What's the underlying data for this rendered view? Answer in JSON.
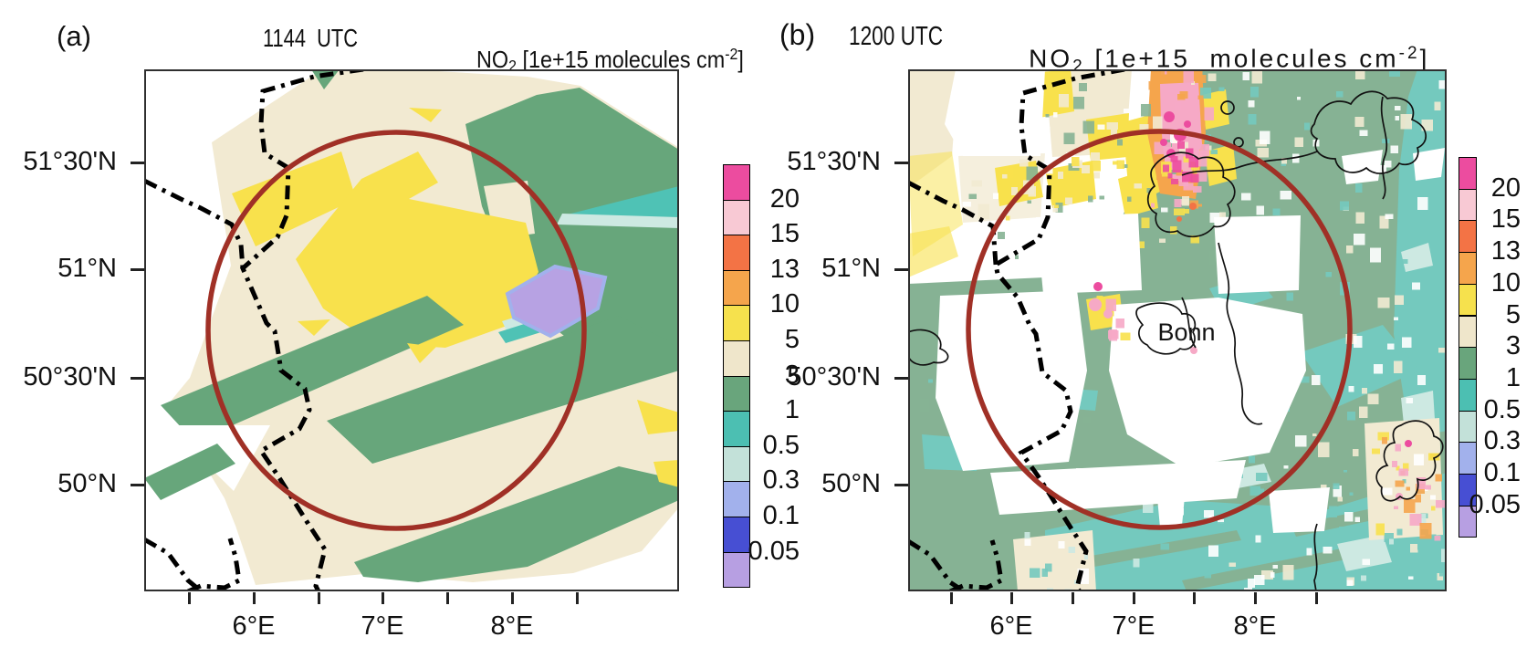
{
  "figure": {
    "background": "#ffffff"
  },
  "panels": [
    {
      "id": "a",
      "index_label": "(a)",
      "time_label": "1144  UTC",
      "title": {
        "species": "NO",
        "subscript": "2",
        "middle": " [1e+15 molecules cm",
        "superscript": "-2",
        "closing": "]"
      }
    },
    {
      "id": "b",
      "index_label": "(b)",
      "time_label": "1200 UTC",
      "title": {
        "species": "NO",
        "subscript": "2",
        "middle": " [1e+15  molecules cm",
        "superscript": "-2",
        "closing": "]"
      },
      "city_label": "Bonn"
    }
  ],
  "axes": {
    "lat_labels": [
      "51°30'N",
      "51°N",
      "50°30'N",
      "50°N"
    ],
    "lon_labels": [
      "6°E",
      "7°E",
      "8°E"
    ]
  },
  "colorbar": {
    "tick_labels": [
      "20",
      "15",
      "13",
      "10",
      "5",
      "3",
      "1",
      "0.5",
      "0.3",
      "0.1",
      "0.05"
    ],
    "segment_colors_top_to_bottom": [
      "#ec4c9f",
      "#f8c9d4",
      "#f37345",
      "#f5a54c",
      "#f6e14d",
      "#efe6cb",
      "#69a57c",
      "#4cbfb2",
      "#c3e1d9",
      "#a2b1ec",
      "#474fd3",
      "#b79fe2"
    ]
  },
  "palette": {
    "magenta": "#ec4c9f",
    "pink": "#f6a9c6",
    "orangered": "#f37345",
    "orange": "#f5a54c",
    "yellow": "#f8e14c",
    "cream": "#f2ead2",
    "green_a": "#67a67b",
    "green_b": "#86b294",
    "teal_a": "#4fc2b5",
    "teal_b": "#74c9be",
    "palecyan": "#cde9e2",
    "periwinkle": "#a2b1ec",
    "blue": "#474fd3",
    "lavender": "#b7a2e3",
    "circle": "#a03026",
    "border_line": "#000000"
  },
  "chart_data": [
    {
      "type": "heatmap",
      "panel": "(a)",
      "title": "1144  UTC",
      "variable": "NO2 [1e+15 molecules cm-2]",
      "x_tick_labels": [
        "6°E",
        "7°E",
        "8°E"
      ],
      "x_minor_tick_degrees": [
        5.5,
        6,
        6.5,
        7,
        7.5,
        8,
        8.5
      ],
      "y_tick_labels": [
        "51°30'N",
        "51°N",
        "50°30'N",
        "50°N"
      ],
      "colorbar_boundaries_low_to_high": [
        0.05,
        0.1,
        0.3,
        0.5,
        1,
        3,
        5,
        10,
        13,
        15,
        20
      ],
      "colorbar_colors_low_to_high": [
        "#b79fe2",
        "#474fd3",
        "#a2b1ec",
        "#c3e1d9",
        "#4cbfb2",
        "#69a57c",
        "#efe6cb",
        "#f6e14d",
        "#f5a54c",
        "#f37345",
        "#f8c9d4",
        "#ec4c9f"
      ],
      "legend_position": "right of panel",
      "features": [
        "smooth coarse-resolution NO2 field inside a tilted satellite swath; white = no data",
        "large cream area (3-5) with yellow patch (5-10) northwest of the circle center",
        "green bands (1-3) across the east and south of the swath",
        "small minimum below 0.05 (lavender) with 0.05-0.5 blue/cyan fringes east of the circle center",
        "dark red circle of ~0.8 degree radius centered near 7°E 50.7°N",
        "thick dash-dotted national border lines on the western side"
      ]
    },
    {
      "type": "heatmap",
      "panel": "(b)",
      "title": "1200 UTC",
      "variable": "NO2 [1e+15  molecules cm-2]",
      "x_tick_labels": [
        "6°E",
        "7°E",
        "8°E"
      ],
      "x_minor_tick_degrees": [
        5.5,
        6,
        6.5,
        7,
        7.5,
        8,
        8.5
      ],
      "y_tick_labels": [
        "51°30'N",
        "51°N",
        "50°30'N",
        "50°N"
      ],
      "colorbar_boundaries_low_to_high": [
        0.05,
        0.1,
        0.3,
        0.5,
        1,
        3,
        5,
        10,
        13,
        15,
        20
      ],
      "colorbar_colors_low_to_high": [
        "#b79fe2",
        "#474fd3",
        "#a2b1ec",
        "#c3e1d9",
        "#4cbfb2",
        "#69a57c",
        "#efe6cb",
        "#f6e14d",
        "#f5a54c",
        "#f37345",
        "#f8c9d4",
        "#ec4c9f"
      ],
      "legend_position": "right of panel",
      "annotations": [
        "Bonn"
      ],
      "features": [
        "fine-resolution speckled NO2 field; white = no data gaps near the center",
        "strong pollution plume (10 to >20: yellow/orange/pink/magenta) extending from north of Bonn to the top of the panel",
        "yellow/cream speckle (3-10) over the northwest quadrant",
        "green (1-3) and teal (0.5-1) field over the east and south",
        "secondary yellow/pink hotspot near the bottom-right",
        "thin solid contour lines (rivers and administrative boundaries)",
        "thick dash-dotted national border lines on the western side",
        "dark red circle centered on the Bonn label"
      ]
    }
  ]
}
